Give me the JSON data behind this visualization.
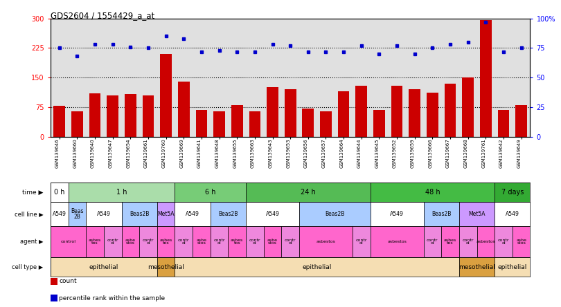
{
  "title": "GDS2604 / 1554429_a_at",
  "samples": [
    "GSM139646",
    "GSM139660",
    "GSM139640",
    "GSM139647",
    "GSM139654",
    "GSM139661",
    "GSM139760",
    "GSM139669",
    "GSM139641",
    "GSM139648",
    "GSM139655",
    "GSM139663",
    "GSM139643",
    "GSM139653",
    "GSM139656",
    "GSM139657",
    "GSM139664",
    "GSM139644",
    "GSM139645",
    "GSM139652",
    "GSM139659",
    "GSM139666",
    "GSM139667",
    "GSM139668",
    "GSM139761",
    "GSM139642",
    "GSM139649"
  ],
  "bar_values": [
    78,
    65,
    110,
    105,
    108,
    105,
    210,
    140,
    68,
    65,
    80,
    64,
    125,
    120,
    72,
    65,
    115,
    130,
    68,
    130,
    120,
    112,
    135,
    150,
    295,
    67,
    80
  ],
  "dot_values": [
    75,
    68,
    78,
    78,
    76,
    75,
    85,
    83,
    72,
    73,
    72,
    72,
    78,
    77,
    72,
    72,
    72,
    77,
    70,
    77,
    70,
    75,
    78,
    80,
    97,
    72,
    75
  ],
  "ylim_left": [
    0,
    300
  ],
  "ylim_right": [
    0,
    100
  ],
  "yticks_left": [
    0,
    75,
    150,
    225,
    300
  ],
  "yticks_right": [
    0,
    25,
    50,
    75,
    100
  ],
  "ytick_labels_right": [
    "0",
    "25",
    "50",
    "75",
    "100%"
  ],
  "hlines": [
    75,
    150,
    225
  ],
  "bar_color": "#cc0000",
  "dot_color": "#0000cc",
  "background_color": "#e0e0e0",
  "time_colors": {
    "0 h": "#ffffff",
    "1 h": "#aaddaa",
    "6 h": "#77cc77",
    "24 h": "#55bb55",
    "48 h": "#44bb44",
    "7 days": "#33aa33"
  },
  "time_row": {
    "label": "time",
    "entries": [
      {
        "text": "0 h",
        "start": 0,
        "end": 1,
        "color": "#ffffff"
      },
      {
        "text": "1 h",
        "start": 1,
        "end": 7,
        "color": "#aaddaa"
      },
      {
        "text": "6 h",
        "start": 7,
        "end": 11,
        "color": "#77cc77"
      },
      {
        "text": "24 h",
        "start": 11,
        "end": 18,
        "color": "#55bb55"
      },
      {
        "text": "48 h",
        "start": 18,
        "end": 25,
        "color": "#44bb44"
      },
      {
        "text": "7 days",
        "start": 25,
        "end": 27,
        "color": "#33aa33"
      }
    ]
  },
  "cellline_row": {
    "label": "cell line",
    "entries": [
      {
        "text": "A549",
        "start": 0,
        "end": 1,
        "color": "#ffffff"
      },
      {
        "text": "Beas\n2B",
        "start": 1,
        "end": 2,
        "color": "#aaccff"
      },
      {
        "text": "A549",
        "start": 2,
        "end": 4,
        "color": "#ffffff"
      },
      {
        "text": "Beas2B",
        "start": 4,
        "end": 6,
        "color": "#aaccff"
      },
      {
        "text": "Met5A",
        "start": 6,
        "end": 7,
        "color": "#cc99ff"
      },
      {
        "text": "A549",
        "start": 7,
        "end": 9,
        "color": "#ffffff"
      },
      {
        "text": "Beas2B",
        "start": 9,
        "end": 11,
        "color": "#aaccff"
      },
      {
        "text": "A549",
        "start": 11,
        "end": 14,
        "color": "#ffffff"
      },
      {
        "text": "Beas2B",
        "start": 14,
        "end": 18,
        "color": "#aaccff"
      },
      {
        "text": "A549",
        "start": 18,
        "end": 21,
        "color": "#ffffff"
      },
      {
        "text": "Beas2B",
        "start": 21,
        "end": 23,
        "color": "#aaccff"
      },
      {
        "text": "Met5A",
        "start": 23,
        "end": 25,
        "color": "#cc99ff"
      },
      {
        "text": "A549",
        "start": 25,
        "end": 27,
        "color": "#ffffff"
      }
    ]
  },
  "agent_row": {
    "label": "agent",
    "entries": [
      {
        "text": "control",
        "start": 0,
        "end": 2,
        "color": "#ff66cc"
      },
      {
        "text": "asbes\ntos",
        "start": 2,
        "end": 3,
        "color": "#ff66cc"
      },
      {
        "text": "contr\nol",
        "start": 3,
        "end": 4,
        "color": "#ee88dd"
      },
      {
        "text": "asbe\nstos",
        "start": 4,
        "end": 5,
        "color": "#ff66cc"
      },
      {
        "text": "contr\nol",
        "start": 5,
        "end": 6,
        "color": "#ee88dd"
      },
      {
        "text": "asbes\ntos",
        "start": 6,
        "end": 7,
        "color": "#ff66cc"
      },
      {
        "text": "contr\nol",
        "start": 7,
        "end": 8,
        "color": "#ee88dd"
      },
      {
        "text": "asbe\nstos",
        "start": 8,
        "end": 9,
        "color": "#ff66cc"
      },
      {
        "text": "contr\nol",
        "start": 9,
        "end": 10,
        "color": "#ee88dd"
      },
      {
        "text": "asbes\ntos",
        "start": 10,
        "end": 11,
        "color": "#ff66cc"
      },
      {
        "text": "contr\nol",
        "start": 11,
        "end": 12,
        "color": "#ee88dd"
      },
      {
        "text": "asbe\nstos",
        "start": 12,
        "end": 13,
        "color": "#ff66cc"
      },
      {
        "text": "contr\nol",
        "start": 13,
        "end": 14,
        "color": "#ee88dd"
      },
      {
        "text": "asbestos",
        "start": 14,
        "end": 17,
        "color": "#ff66cc"
      },
      {
        "text": "contr\nol",
        "start": 17,
        "end": 18,
        "color": "#ee88dd"
      },
      {
        "text": "asbestos",
        "start": 18,
        "end": 21,
        "color": "#ff66cc"
      },
      {
        "text": "contr\nol",
        "start": 21,
        "end": 22,
        "color": "#ee88dd"
      },
      {
        "text": "asbes\ntos",
        "start": 22,
        "end": 23,
        "color": "#ff66cc"
      },
      {
        "text": "contr\nol",
        "start": 23,
        "end": 24,
        "color": "#ee88dd"
      },
      {
        "text": "asbestos",
        "start": 24,
        "end": 25,
        "color": "#ff66cc"
      },
      {
        "text": "contr\nol",
        "start": 25,
        "end": 26,
        "color": "#ee88dd"
      },
      {
        "text": "asbe\nstos",
        "start": 26,
        "end": 27,
        "color": "#ff66cc"
      }
    ]
  },
  "celltype_row": {
    "label": "cell type",
    "entries": [
      {
        "text": "epithelial",
        "start": 0,
        "end": 6,
        "color": "#f5deb3"
      },
      {
        "text": "mesothelial",
        "start": 6,
        "end": 7,
        "color": "#daa040"
      },
      {
        "text": "epithelial",
        "start": 7,
        "end": 23,
        "color": "#f5deb3"
      },
      {
        "text": "mesothelial",
        "start": 23,
        "end": 25,
        "color": "#daa040"
      },
      {
        "text": "epithelial",
        "start": 25,
        "end": 27,
        "color": "#f5deb3"
      }
    ]
  },
  "legend_items": [
    {
      "color": "#cc0000",
      "label": "count"
    },
    {
      "color": "#0000cc",
      "label": "percentile rank within the sample"
    }
  ]
}
